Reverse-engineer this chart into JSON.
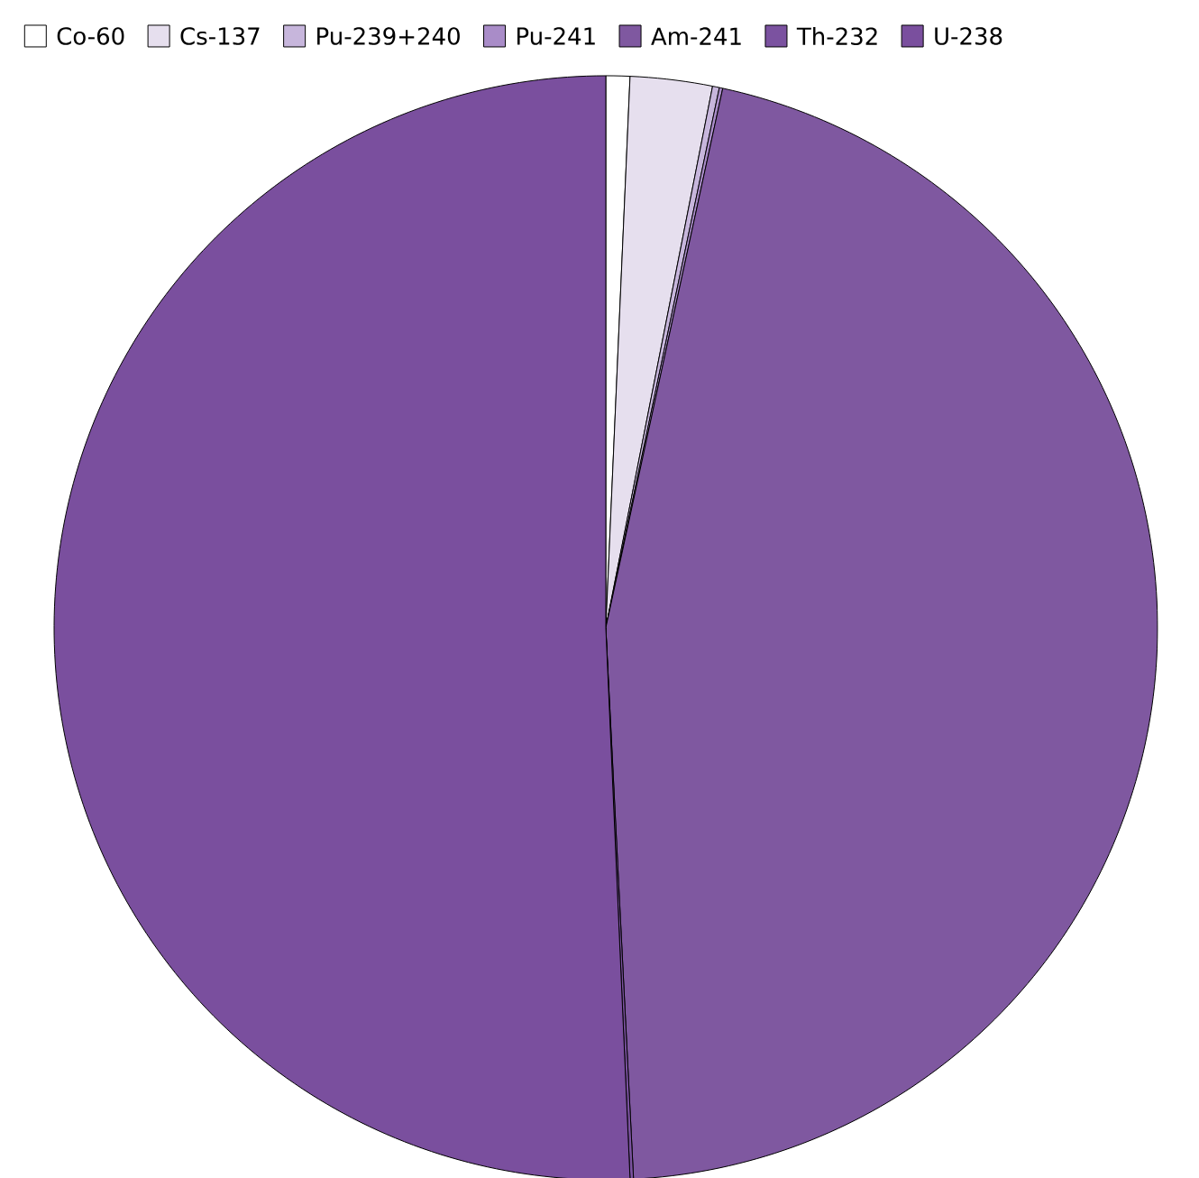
{
  "chart_data": {
    "type": "pie",
    "legend": "top",
    "categories": [
      "Co-60",
      "Cs-137",
      "Pu-239+240",
      "Pu-241",
      "Am-241",
      "Th-232",
      "U-238"
    ],
    "values": [
      0.7,
      2.4,
      0.2,
      0.1,
      45.8,
      0.1,
      50.7
    ],
    "colors": [
      "#ffffff",
      "#e6dfee",
      "#c7b6dc",
      "#a98cc8",
      "#7f58a0",
      "#7b52a0",
      "#7a4f9e"
    ]
  }
}
